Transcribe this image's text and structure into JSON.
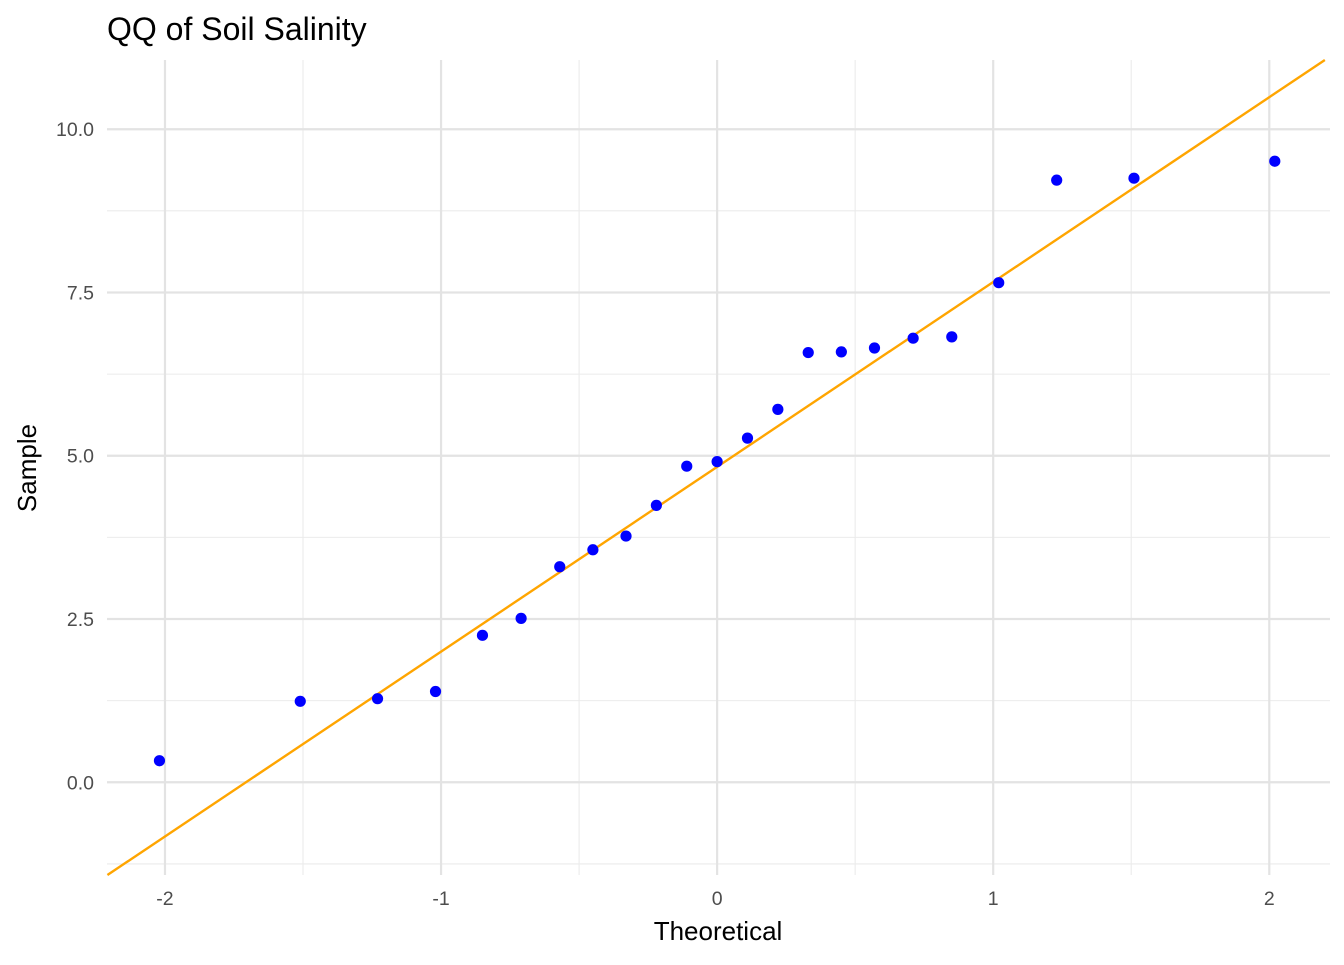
{
  "chart_data": {
    "type": "scatter",
    "title": "QQ of Soil Salinity",
    "xlabel": "Theoretical",
    "ylabel": "Sample",
    "xlim": [
      -2.21,
      2.22
    ],
    "ylim": [
      -1.42,
      11.06
    ],
    "x_ticks": [
      -2,
      -1,
      0,
      1,
      2
    ],
    "x_tick_labels": [
      "-2",
      "-1",
      "0",
      "1",
      "2"
    ],
    "y_ticks": [
      0,
      2.5,
      5,
      7.5,
      10
    ],
    "y_tick_labels": [
      "0.0",
      "2.5",
      "5.0",
      "7.5",
      "10.0"
    ],
    "grid": true,
    "legend": "none",
    "series": [
      {
        "kind": "points",
        "color": "#0000ff",
        "x": [
          -2.02,
          -1.51,
          -1.23,
          -1.02,
          -0.85,
          -0.71,
          -0.57,
          -0.45,
          -0.33,
          -0.22,
          -0.11,
          0.0,
          0.11,
          0.22,
          0.33,
          0.45,
          0.57,
          0.71,
          0.85,
          1.02,
          1.23,
          1.51,
          2.02
        ],
        "y": [
          0.33,
          1.24,
          1.28,
          1.39,
          2.25,
          2.51,
          3.3,
          3.56,
          3.77,
          4.24,
          4.84,
          4.91,
          5.27,
          5.71,
          6.58,
          6.59,
          6.65,
          6.8,
          6.82,
          7.65,
          9.22,
          9.25,
          9.51
        ]
      },
      {
        "kind": "reference-line",
        "color": "#ffa500",
        "intercept": 4.83,
        "slope": 2.83
      }
    ]
  }
}
